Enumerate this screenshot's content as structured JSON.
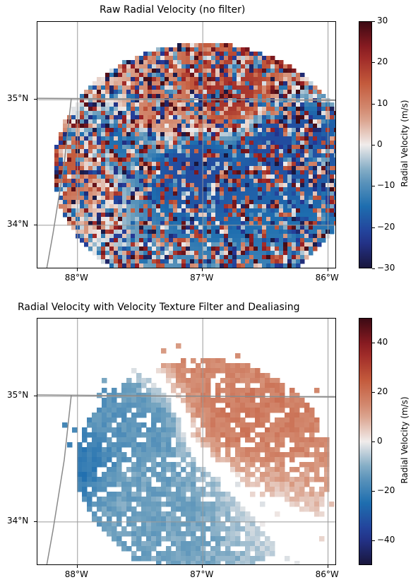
{
  "chart_data": [
    {
      "type": "heatmap",
      "title": "Raw Radial Velocity (no filter)",
      "x_ticks": [
        "88°W",
        "87°W",
        "86°W"
      ],
      "x_tick_values": [
        -88,
        -87,
        -86
      ],
      "y_ticks": [
        "35°N",
        "34°N"
      ],
      "y_tick_values": [
        35,
        34
      ],
      "xlim": [
        -88.32,
        -85.93
      ],
      "ylim": [
        33.65,
        35.62
      ],
      "grid": true,
      "colorbar": {
        "label": "Radial Velocity (m/s)",
        "ticks": [
          "30",
          "20",
          "10",
          "0",
          "−10",
          "−20",
          "−30"
        ],
        "tick_values": [
          30,
          20,
          10,
          0,
          -10,
          -20,
          -30
        ],
        "range": [
          -30,
          30
        ],
        "colormap": "balance"
      },
      "regions": [
        {
          "desc": "outbound",
          "center": [
            -87.4,
            34.92
          ],
          "velocity": 10
        },
        {
          "desc": "outbound",
          "center": [
            -86.8,
            35.05
          ],
          "velocity": 20
        },
        {
          "desc": "inbound",
          "center": [
            -87.7,
            34.7
          ],
          "velocity": -15
        },
        {
          "desc": "inbound",
          "center": [
            -87.1,
            34.48
          ],
          "velocity": -20
        },
        {
          "desc": "outbound",
          "center": [
            -88.1,
            34.55
          ],
          "velocity": 15
        },
        {
          "desc": "inbound",
          "center": [
            -86.4,
            34.7
          ],
          "velocity": -20
        }
      ]
    },
    {
      "type": "heatmap",
      "title": "Radial Velocity with Velocity Texture Filter and Dealiasing",
      "x_ticks": [
        "88°W",
        "87°W",
        "86°W"
      ],
      "x_tick_values": [
        -88,
        -87,
        -86
      ],
      "y_ticks": [
        "35°N",
        "34°N"
      ],
      "y_tick_values": [
        35,
        34
      ],
      "xlim": [
        -88.32,
        -85.93
      ],
      "ylim": [
        33.65,
        35.62
      ],
      "grid": true,
      "colorbar": {
        "label": "Radial Velocity (m/s)",
        "ticks": [
          "40",
          "20",
          "0",
          "−20",
          "−40"
        ],
        "tick_values": [
          40,
          20,
          0,
          -20,
          -40
        ],
        "range": [
          -50,
          50
        ],
        "colormap": "balance"
      },
      "regions": [
        {
          "desc": "outbound",
          "center": [
            -86.7,
            34.9
          ],
          "velocity": 18
        },
        {
          "desc": "outbound",
          "center": [
            -86.8,
            35.25
          ],
          "velocity": 15
        },
        {
          "desc": "inbound",
          "center": [
            -87.6,
            34.75
          ],
          "velocity": -15
        },
        {
          "desc": "inbound",
          "center": [
            -88.1,
            34.5
          ],
          "velocity": -22
        },
        {
          "desc": "inbound",
          "center": [
            -87.5,
            34.25
          ],
          "velocity": -12
        }
      ]
    }
  ]
}
